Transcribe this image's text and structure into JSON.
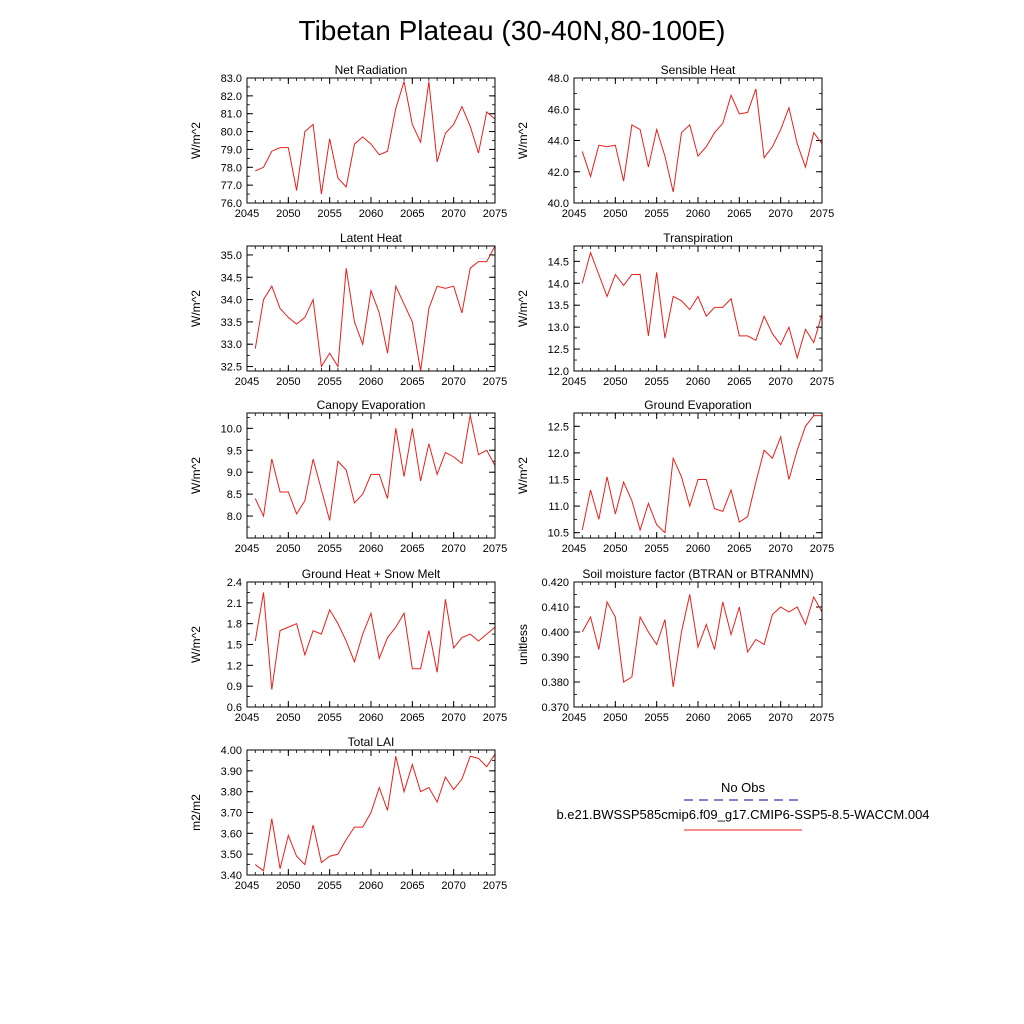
{
  "figure_title": "Tibetan Plateau (30-40N,80-100E)",
  "legend": {
    "obs_label": "No Obs",
    "obs_color": "#3333aa",
    "model_label": "b.e21.BWSSP585cmip6.f09_g17.CMIP6-SSP5-8.5-WACCM.004",
    "model_color": "#e8201c"
  },
  "chart_data": [
    {
      "type": "line",
      "title": "Net Radiation",
      "ylabel": "W/m^2",
      "xlim": [
        2045,
        2075
      ],
      "ylim": [
        76.0,
        83.0
      ],
      "xticks": [
        "2045",
        "2050",
        "2055",
        "2060",
        "2065",
        "2070",
        "2075"
      ],
      "yticks": [
        "76.0",
        "77.0",
        "78.0",
        "79.0",
        "80.0",
        "81.0",
        "82.0",
        "83.0"
      ],
      "series": [
        {
          "name": "b.e21.BWSSP585cmip6.f09_g17.CMIP6-SSP5-8.5-WACCM.004",
          "color": "#e8201c",
          "x": [
            2046,
            2047,
            2048,
            2049,
            2050,
            2051,
            2052,
            2053,
            2054,
            2055,
            2056,
            2057,
            2058,
            2059,
            2060,
            2061,
            2062,
            2063,
            2064,
            2065,
            2066,
            2067,
            2068,
            2069,
            2070,
            2071,
            2072,
            2073,
            2074,
            2075
          ],
          "values": [
            77.8,
            78.0,
            78.9,
            79.1,
            79.1,
            76.7,
            80.0,
            80.4,
            76.5,
            79.6,
            77.4,
            76.9,
            79.3,
            79.7,
            79.3,
            78.7,
            78.9,
            81.3,
            82.8,
            80.4,
            79.4,
            82.8,
            78.3,
            79.9,
            80.4,
            81.4,
            80.3,
            78.8,
            81.1,
            80.7
          ]
        }
      ]
    },
    {
      "type": "line",
      "title": "Sensible Heat",
      "ylabel": "W/m^2",
      "xlim": [
        2045,
        2075
      ],
      "ylim": [
        40.0,
        48.0
      ],
      "xticks": [
        "2045",
        "2050",
        "2055",
        "2060",
        "2065",
        "2070",
        "2075"
      ],
      "yticks": [
        "40.0",
        "42.0",
        "44.0",
        "46.0",
        "48.0"
      ],
      "series": [
        {
          "name": "b.e21.BWSSP585cmip6.f09_g17.CMIP6-SSP5-8.5-WACCM.004",
          "color": "#e8201c",
          "x": [
            2046,
            2047,
            2048,
            2049,
            2050,
            2051,
            2052,
            2053,
            2054,
            2055,
            2056,
            2057,
            2058,
            2059,
            2060,
            2061,
            2062,
            2063,
            2064,
            2065,
            2066,
            2067,
            2068,
            2069,
            2070,
            2071,
            2072,
            2073,
            2074,
            2075
          ],
          "values": [
            43.3,
            41.7,
            43.7,
            43.6,
            43.7,
            41.4,
            45.0,
            44.7,
            42.3,
            44.7,
            43.0,
            40.7,
            44.5,
            45.0,
            43.0,
            43.6,
            44.5,
            45.1,
            46.9,
            45.7,
            45.8,
            47.3,
            42.9,
            43.6,
            44.7,
            46.1,
            43.8,
            42.3,
            44.5,
            43.8
          ]
        }
      ]
    },
    {
      "type": "line",
      "title": "Latent Heat",
      "ylabel": "W/m^2",
      "xlim": [
        2045,
        2075
      ],
      "ylim": [
        32.4,
        35.2
      ],
      "xticks": [
        "2045",
        "2050",
        "2055",
        "2060",
        "2065",
        "2070",
        "2075"
      ],
      "yticks": [
        "32.5",
        "33.0",
        "33.5",
        "34.0",
        "34.5",
        "35.0"
      ],
      "series": [
        {
          "name": "b.e21.BWSSP585cmip6.f09_g17.CMIP6-SSP5-8.5-WACCM.004",
          "color": "#e8201c",
          "x": [
            2046,
            2047,
            2048,
            2049,
            2050,
            2051,
            2052,
            2053,
            2054,
            2055,
            2056,
            2057,
            2058,
            2059,
            2060,
            2061,
            2062,
            2063,
            2064,
            2065,
            2066,
            2067,
            2068,
            2069,
            2070,
            2071,
            2072,
            2073,
            2074,
            2075
          ],
          "values": [
            32.9,
            34.0,
            34.3,
            33.8,
            33.6,
            33.45,
            33.6,
            34.0,
            32.5,
            32.8,
            32.5,
            34.7,
            33.5,
            33.0,
            34.2,
            33.7,
            32.8,
            34.3,
            33.9,
            33.5,
            32.4,
            33.8,
            34.3,
            34.25,
            34.3,
            33.7,
            34.7,
            34.85,
            34.85,
            35.2
          ]
        }
      ]
    },
    {
      "type": "line",
      "title": "Transpiration",
      "ylabel": "W/m^2",
      "xlim": [
        2045,
        2075
      ],
      "ylim": [
        12.0,
        14.85
      ],
      "xticks": [
        "2045",
        "2050",
        "2055",
        "2060",
        "2065",
        "2070",
        "2075"
      ],
      "yticks": [
        "12.0",
        "12.5",
        "13.0",
        "13.5",
        "14.0",
        "14.5"
      ],
      "series": [
        {
          "name": "b.e21.BWSSP585cmip6.f09_g17.CMIP6-SSP5-8.5-WACCM.004",
          "color": "#e8201c",
          "x": [
            2046,
            2047,
            2048,
            2049,
            2050,
            2051,
            2052,
            2053,
            2054,
            2055,
            2056,
            2057,
            2058,
            2059,
            2060,
            2061,
            2062,
            2063,
            2064,
            2065,
            2066,
            2067,
            2068,
            2069,
            2070,
            2071,
            2072,
            2073,
            2074,
            2075
          ],
          "values": [
            14.0,
            14.7,
            14.2,
            13.7,
            14.2,
            13.95,
            14.2,
            14.2,
            12.8,
            14.25,
            12.75,
            13.7,
            13.6,
            13.4,
            13.7,
            13.25,
            13.45,
            13.45,
            13.65,
            12.8,
            12.8,
            12.7,
            13.25,
            12.85,
            12.6,
            13.0,
            12.3,
            12.95,
            12.65,
            13.3
          ]
        }
      ]
    },
    {
      "type": "line",
      "title": "Canopy Evaporation",
      "ylabel": "W/m^2",
      "xlim": [
        2045,
        2075
      ],
      "ylim": [
        7.5,
        10.35
      ],
      "xticks": [
        "2045",
        "2050",
        "2055",
        "2060",
        "2065",
        "2070",
        "2075"
      ],
      "yticks": [
        "8.0",
        "8.5",
        "9.0",
        "9.5",
        "10.0"
      ],
      "series": [
        {
          "name": "b.e21.BWSSP585cmip6.f09_g17.CMIP6-SSP5-8.5-WACCM.004",
          "color": "#e8201c",
          "x": [
            2046,
            2047,
            2048,
            2049,
            2050,
            2051,
            2052,
            2053,
            2054,
            2055,
            2056,
            2057,
            2058,
            2059,
            2060,
            2061,
            2062,
            2063,
            2064,
            2065,
            2066,
            2067,
            2068,
            2069,
            2070,
            2071,
            2072,
            2073,
            2074,
            2075
          ],
          "values": [
            8.4,
            8.0,
            9.3,
            8.55,
            8.55,
            8.05,
            8.35,
            9.3,
            8.6,
            7.9,
            9.25,
            9.05,
            8.3,
            8.5,
            8.95,
            8.95,
            8.4,
            10.0,
            8.9,
            10.0,
            8.8,
            9.65,
            8.95,
            9.45,
            9.35,
            9.2,
            10.3,
            9.4,
            9.5,
            9.15
          ]
        }
      ]
    },
    {
      "type": "line",
      "title": "Ground Evaporation",
      "ylabel": "W/m^2",
      "xlim": [
        2045,
        2075
      ],
      "ylim": [
        10.4,
        12.75
      ],
      "xticks": [
        "2045",
        "2050",
        "2055",
        "2060",
        "2065",
        "2070",
        "2075"
      ],
      "yticks": [
        "10.5",
        "11.0",
        "11.5",
        "12.0",
        "12.5"
      ],
      "series": [
        {
          "name": "b.e21.BWSSP585cmip6.f09_g17.CMIP6-SSP5-8.5-WACCM.004",
          "color": "#e8201c",
          "x": [
            2046,
            2047,
            2048,
            2049,
            2050,
            2051,
            2052,
            2053,
            2054,
            2055,
            2056,
            2057,
            2058,
            2059,
            2060,
            2061,
            2062,
            2063,
            2064,
            2065,
            2066,
            2067,
            2068,
            2069,
            2070,
            2071,
            2072,
            2073,
            2074,
            2075
          ],
          "values": [
            10.55,
            11.3,
            10.75,
            11.55,
            10.85,
            11.45,
            11.1,
            10.55,
            11.05,
            10.65,
            10.5,
            11.9,
            11.55,
            11.0,
            11.5,
            11.5,
            10.95,
            10.9,
            11.3,
            10.7,
            10.8,
            11.45,
            12.05,
            11.9,
            12.3,
            11.5,
            12.05,
            12.5,
            12.7,
            12.7
          ]
        }
      ]
    },
    {
      "type": "line",
      "title": "Ground Heat + Snow Melt",
      "ylabel": "W/m^2",
      "xlim": [
        2045,
        2075
      ],
      "ylim": [
        0.6,
        2.4
      ],
      "xticks": [
        "2045",
        "2050",
        "2055",
        "2060",
        "2065",
        "2070",
        "2075"
      ],
      "yticks": [
        "0.6",
        "0.9",
        "1.2",
        "1.5",
        "1.8",
        "2.1",
        "2.4"
      ],
      "series": [
        {
          "name": "b.e21.BWSSP585cmip6.f09_g17.CMIP6-SSP5-8.5-WACCM.004",
          "color": "#e8201c",
          "x": [
            2046,
            2047,
            2048,
            2049,
            2050,
            2051,
            2052,
            2053,
            2054,
            2055,
            2056,
            2057,
            2058,
            2059,
            2060,
            2061,
            2062,
            2063,
            2064,
            2065,
            2066,
            2067,
            2068,
            2069,
            2070,
            2071,
            2072,
            2073,
            2074,
            2075
          ],
          "values": [
            1.55,
            2.25,
            0.85,
            1.7,
            1.75,
            1.8,
            1.35,
            1.7,
            1.65,
            2.0,
            1.8,
            1.55,
            1.25,
            1.65,
            1.95,
            1.3,
            1.6,
            1.75,
            1.95,
            1.15,
            1.15,
            1.7,
            1.1,
            2.15,
            1.45,
            1.6,
            1.65,
            1.55,
            1.65,
            1.75
          ]
        }
      ]
    },
    {
      "type": "line",
      "title": "Soil moisture factor (BTRAN or BTRANMN)",
      "ylabel": "unitless",
      "xlim": [
        2045,
        2075
      ],
      "ylim": [
        0.37,
        0.42
      ],
      "xticks": [
        "2045",
        "2050",
        "2055",
        "2060",
        "2065",
        "2070",
        "2075"
      ],
      "yticks": [
        "0.370",
        "0.380",
        "0.390",
        "0.400",
        "0.410",
        "0.420"
      ],
      "series": [
        {
          "name": "b.e21.BWSSP585cmip6.f09_g17.CMIP6-SSP5-8.5-WACCM.004",
          "color": "#e8201c",
          "x": [
            2046,
            2047,
            2048,
            2049,
            2050,
            2051,
            2052,
            2053,
            2054,
            2055,
            2056,
            2057,
            2058,
            2059,
            2060,
            2061,
            2062,
            2063,
            2064,
            2065,
            2066,
            2067,
            2068,
            2069,
            2070,
            2071,
            2072,
            2073,
            2074,
            2075
          ],
          "values": [
            0.4,
            0.406,
            0.393,
            0.412,
            0.406,
            0.38,
            0.382,
            0.406,
            0.4,
            0.395,
            0.405,
            0.378,
            0.4,
            0.415,
            0.394,
            0.403,
            0.393,
            0.412,
            0.399,
            0.41,
            0.392,
            0.397,
            0.395,
            0.407,
            0.41,
            0.408,
            0.41,
            0.403,
            0.414,
            0.408
          ]
        }
      ]
    },
    {
      "type": "line",
      "title": "Total LAI",
      "ylabel": "m2/m2",
      "xlim": [
        2045,
        2075
      ],
      "ylim": [
        3.4,
        4.0
      ],
      "xticks": [
        "2045",
        "2050",
        "2055",
        "2060",
        "2065",
        "2070",
        "2075"
      ],
      "yticks": [
        "3.40",
        "3.50",
        "3.60",
        "3.70",
        "3.80",
        "3.90",
        "4.00"
      ],
      "series": [
        {
          "name": "b.e21.BWSSP585cmip6.f09_g17.CMIP6-SSP5-8.5-WACCM.004",
          "color": "#e8201c",
          "x": [
            2046,
            2047,
            2048,
            2049,
            2050,
            2051,
            2052,
            2053,
            2054,
            2055,
            2056,
            2057,
            2058,
            2059,
            2060,
            2061,
            2062,
            2063,
            2064,
            2065,
            2066,
            2067,
            2068,
            2069,
            2070,
            2071,
            2072,
            2073,
            2074,
            2075
          ],
          "values": [
            3.45,
            3.42,
            3.67,
            3.43,
            3.59,
            3.49,
            3.45,
            3.64,
            3.46,
            3.49,
            3.5,
            3.57,
            3.63,
            3.63,
            3.7,
            3.82,
            3.71,
            3.97,
            3.8,
            3.93,
            3.8,
            3.82,
            3.75,
            3.87,
            3.81,
            3.86,
            3.97,
            3.96,
            3.92,
            3.98
          ]
        }
      ]
    }
  ]
}
